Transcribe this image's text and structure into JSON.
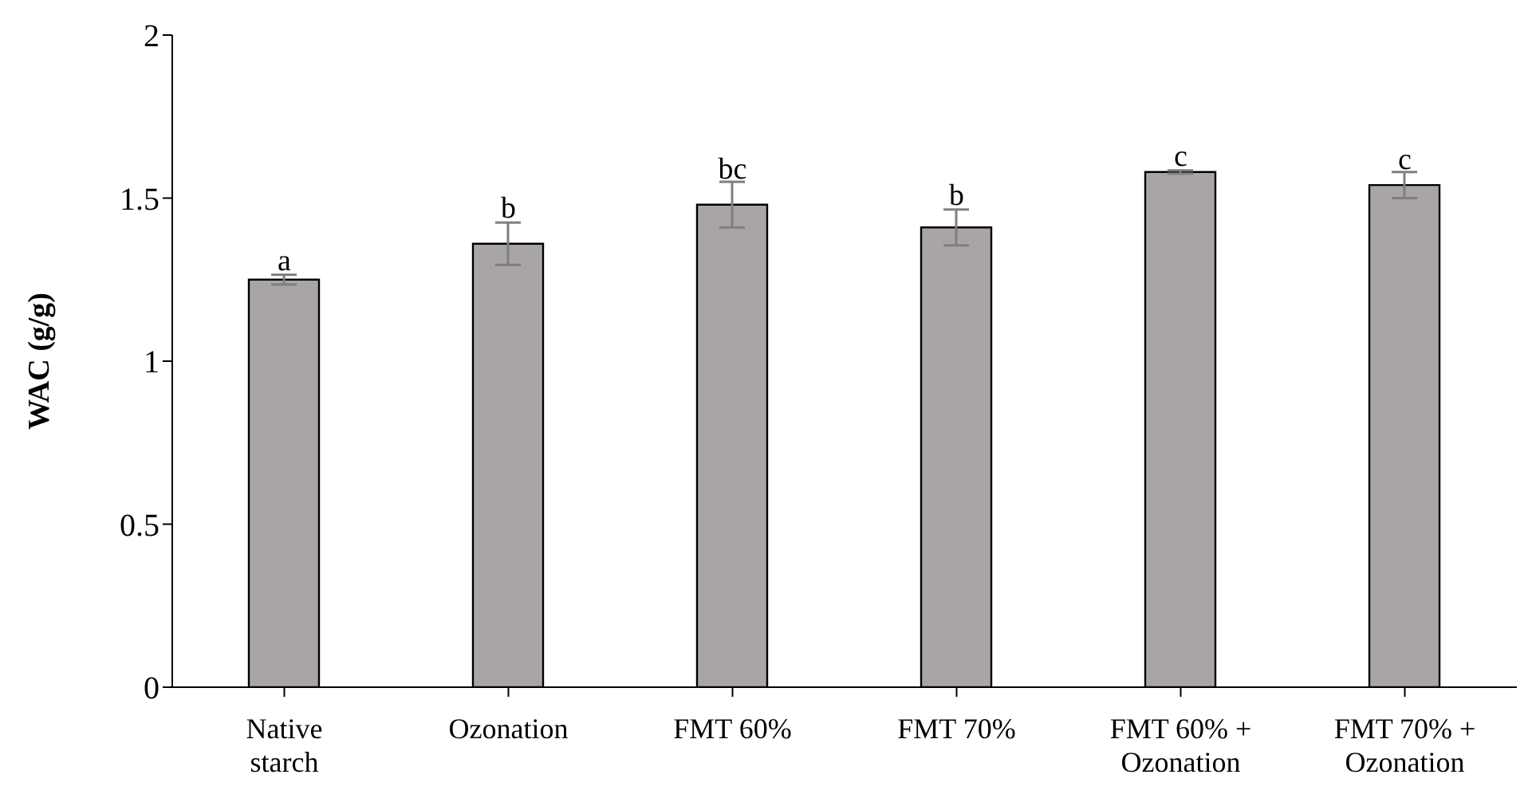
{
  "chart_data": {
    "type": "bar",
    "ylabel": "WAC (g/g)",
    "categories": [
      "Native starch",
      "Ozonation",
      "FMT 60%",
      "FMT 70%",
      "FMT 60% + Ozonation",
      "FMT 70% + Ozonation"
    ],
    "values": [
      1.25,
      1.36,
      1.48,
      1.41,
      1.58,
      1.54
    ],
    "errors": [
      0.015,
      0.065,
      0.07,
      0.055,
      0.005,
      0.04
    ],
    "color": "#a9a5a5",
    "ylim": [
      0,
      2
    ],
    "yticks": [
      0,
      0.5,
      1,
      1.5,
      2
    ],
    "grid": false,
    "legend": false,
    "annotations": [
      {
        "text": "a",
        "x": "Native starch",
        "y": 1.27
      },
      {
        "text": "b",
        "x": "Ozonation",
        "y": 1.43
      },
      {
        "text": "bc",
        "x": "FMT 60%",
        "y": 1.55
      },
      {
        "text": "b",
        "x": "FMT 70%",
        "y": 1.47
      },
      {
        "text": "c",
        "x": "FMT 60% + Ozonation",
        "y": 1.59
      },
      {
        "text": "c",
        "x": "FMT 70% + Ozonation",
        "y": 1.58
      }
    ]
  }
}
